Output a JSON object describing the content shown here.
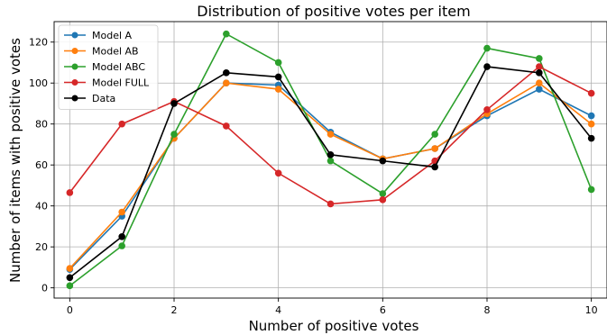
{
  "chart_data": {
    "type": "line",
    "title": "Distribution of positive votes per item",
    "xlabel": "Number of positive votes",
    "ylabel": "Number of items with positive votes",
    "x": [
      0,
      1,
      2,
      3,
      4,
      5,
      6,
      7,
      8,
      9,
      10
    ],
    "xlim": [
      -0.3,
      10.3
    ],
    "ylim": [
      -5,
      130
    ],
    "xticks": [
      0,
      2,
      4,
      6,
      8,
      10
    ],
    "yticks": [
      0,
      20,
      40,
      60,
      80,
      100,
      120
    ],
    "grid": true,
    "legend_position": "top-left",
    "series": [
      {
        "name": "Model A",
        "color": "#1f77b4",
        "values": [
          9,
          35,
          73,
          100,
          99,
          76,
          63,
          68,
          84,
          97,
          84
        ]
      },
      {
        "name": "Model AB",
        "color": "#ff7f0e",
        "values": [
          9.5,
          37,
          73,
          100,
          97,
          75,
          63,
          68,
          85,
          100,
          80
        ]
      },
      {
        "name": "Model ABC",
        "color": "#2ca02c",
        "values": [
          1,
          20.5,
          75,
          124,
          110,
          62,
          46,
          75,
          117,
          112,
          48
        ]
      },
      {
        "name": "Model FULL",
        "color": "#d62728",
        "values": [
          46.5,
          80,
          91,
          79,
          56,
          41,
          43,
          62,
          87,
          108,
          95
        ]
      },
      {
        "name": "Data",
        "color": "#000000",
        "values": [
          5,
          25,
          90,
          105,
          103,
          65,
          62,
          59,
          108,
          105,
          73
        ]
      }
    ]
  }
}
